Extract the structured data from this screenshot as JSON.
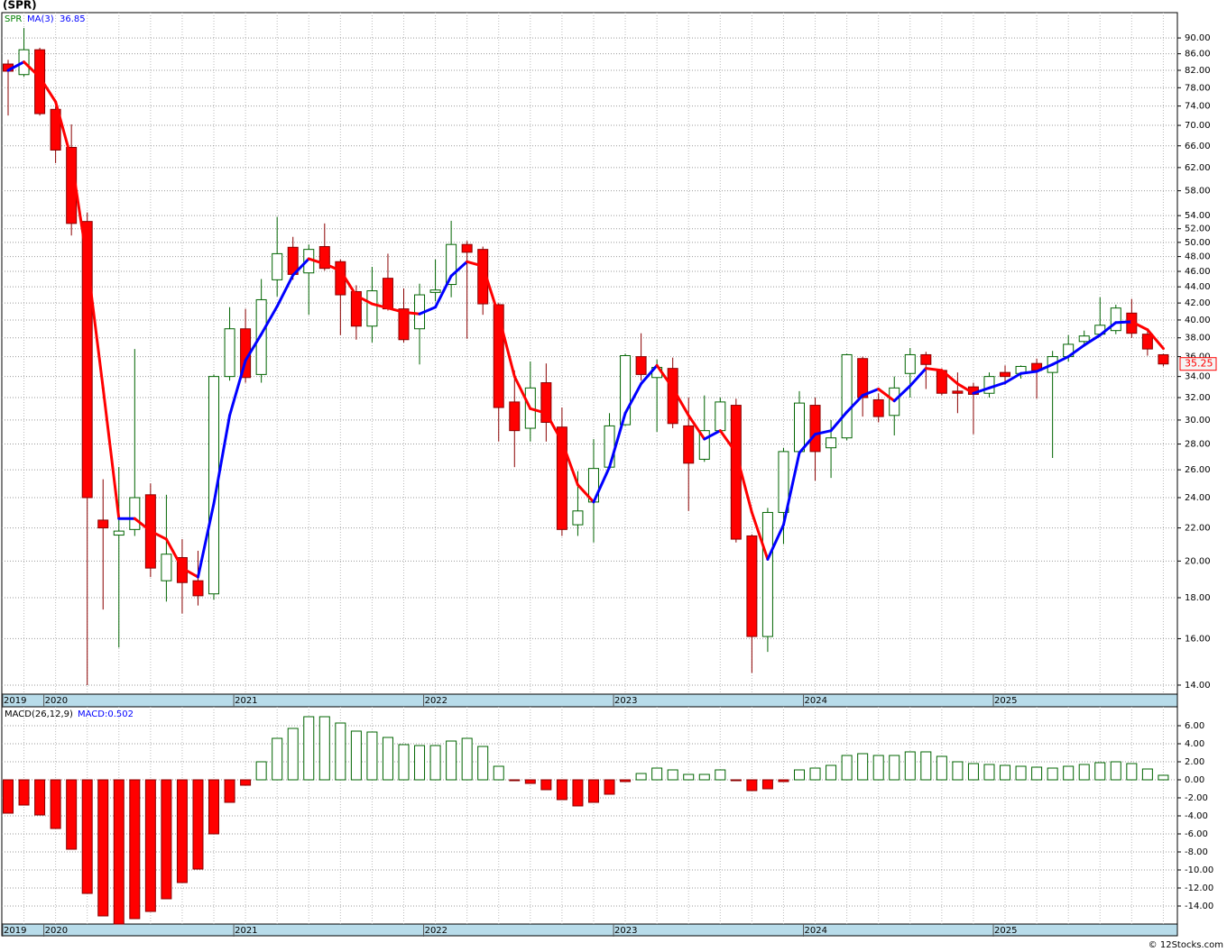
{
  "title": "(SPR)",
  "footer": "© 12Stocks.com",
  "chart_data": [
    {
      "type": "candlestick",
      "name": "SPR",
      "ma_label": "MA(3)",
      "ma_value_label": "36.85",
      "last_label": "35.25",
      "open": [
        83.5,
        81,
        87,
        73.3,
        65.7,
        53.1,
        22.5,
        21.55,
        21.9,
        24.2,
        18.9,
        20.2,
        18.9,
        18.2,
        34,
        39,
        34.2,
        44.9,
        49.3,
        45.8,
        49.4,
        47.3,
        43.4,
        39.3,
        45.1,
        41.3,
        39,
        43.3,
        44.3,
        49.7,
        49.0,
        41.8,
        31.6,
        29.3,
        33.4,
        29.4,
        22.2,
        23.7,
        26.2,
        29.6,
        36.0,
        33.9,
        34.8,
        29.5,
        26.8,
        29.1,
        31.3,
        21.5,
        16.1,
        23.0,
        27.4,
        31.3,
        27.7,
        28.5,
        35.8,
        31.8,
        30.4,
        34.3,
        36.2,
        34.6,
        32.6,
        33.0,
        32.4,
        34.4,
        34.3,
        35.3,
        34.4,
        36.0,
        37.6,
        38.4,
        38.8,
        40.8,
        38.4,
        36.2
      ],
      "high": [
        84.5,
        92.6,
        87.5,
        74,
        70.2,
        54.5,
        25.3,
        26.2,
        36.8,
        25,
        24.2,
        21.3,
        20.6,
        34.2,
        41.5,
        41.3,
        45,
        53.8,
        50.8,
        49.7,
        52.8,
        47.6,
        44.2,
        46.6,
        48.4,
        43.8,
        44.4,
        47.6,
        53.2,
        50.2,
        49.4,
        42,
        34.6,
        35.5,
        35.3,
        31.1,
        25.9,
        28.4,
        30.6,
        36.3,
        38.5,
        35.7,
        35.9,
        32,
        32.2,
        32,
        31.9,
        21.6,
        23.3,
        27.7,
        32.6,
        32,
        30,
        36.3,
        36,
        32.4,
        34,
        36.9,
        36.5,
        34.8,
        34.4,
        33.4,
        34.4,
        35.1,
        35.1,
        35.8,
        36.6,
        38.3,
        38.8,
        42.7,
        41.8,
        42.5,
        38.9,
        36.3
      ],
      "low": [
        72,
        80.5,
        72,
        62.8,
        51,
        14,
        17.4,
        15.6,
        21.5,
        19.1,
        17.8,
        17.2,
        17.6,
        17.9,
        33.6,
        33.4,
        33.4,
        42.8,
        44.9,
        40.6,
        46.1,
        38.3,
        37.8,
        37.5,
        41.1,
        37.5,
        35.2,
        42.2,
        42.7,
        37.9,
        40.6,
        28.2,
        26.2,
        28.2,
        28.2,
        21.5,
        21.5,
        21.1,
        26.1,
        29.5,
        33.6,
        29,
        29.3,
        23.1,
        26.6,
        29.0,
        21.1,
        14.5,
        15.4,
        21.0,
        27.0,
        25.2,
        25.4,
        28.3,
        30.3,
        29.8,
        28.7,
        32.0,
        32.8,
        32.2,
        30.6,
        28.8,
        32.0,
        33.2,
        33.8,
        31.9,
        26.9,
        35.5,
        37.3,
        38.1,
        38.4,
        38.0,
        36.1,
        35.0
      ],
      "close": [
        81.8,
        87,
        72.4,
        65.2,
        52.8,
        24,
        22.0,
        21.8,
        24.0,
        19.6,
        20.4,
        18.8,
        18.1,
        34,
        39,
        33.9,
        42.4,
        48.4,
        45.6,
        49.0,
        46.4,
        43,
        39.3,
        43.5,
        41.3,
        37.8,
        43,
        43.6,
        49.7,
        48.6,
        41.9,
        31.1,
        29.1,
        32.9,
        29.8,
        21.9,
        23.1,
        26.1,
        29.5,
        36.1,
        34.2,
        34.9,
        29.7,
        26.5,
        29.1,
        31.6,
        21.3,
        16.1,
        23.0,
        27.4,
        31.5,
        27.4,
        28.5,
        36.2,
        32,
        30.3,
        32.9,
        36.2,
        35.2,
        32.4,
        32.4,
        32.3,
        34.0,
        34.0,
        35.0,
        34.6,
        36.0,
        37.3,
        38.2,
        39.4,
        41.4,
        38.5,
        36.8,
        35.25
      ],
      "ma": [
        82.0,
        84.0,
        80.4,
        74.9,
        63.5,
        47.3,
        32.9,
        22.6,
        22.6,
        21.8,
        21.3,
        19.6,
        19.1,
        23.6,
        30.4,
        35.6,
        38.4,
        41.6,
        45.5,
        47.7,
        47.0,
        46.1,
        42.9,
        41.9,
        41.4,
        40.9,
        40.7,
        41.5,
        45.4,
        47.3,
        46.7,
        40.5,
        34.0,
        31.0,
        30.6,
        28.2,
        24.9,
        23.7,
        26.2,
        30.6,
        33.3,
        35.1,
        32.9,
        30.4,
        28.4,
        29.1,
        27.3,
        23.0,
        20.1,
        22.2,
        27.3,
        28.8,
        29.1,
        30.7,
        32.2,
        32.8,
        31.7,
        33.1,
        34.8,
        34.6,
        33.3,
        32.4,
        32.9,
        33.4,
        34.3,
        34.5,
        35.2,
        36.0,
        37.2,
        38.3,
        39.7,
        39.8,
        38.9,
        36.85
      ],
      "up_color": "#006400",
      "down_color": "#ff0000",
      "ma_up_color": "#0000ff",
      "ma_down_color": "#ff0000",
      "log_scale": true,
      "grid": true,
      "ylim": [
        13.64,
        96.8
      ],
      "yticks": [
        {
          "value": 14,
          "label": "14.00"
        },
        {
          "value": 16,
          "label": "16.00"
        },
        {
          "value": 18,
          "label": "18.00"
        },
        {
          "value": 20,
          "label": "20.00"
        },
        {
          "value": 22,
          "label": "22.00"
        },
        {
          "value": 24,
          "label": "24.00"
        },
        {
          "value": 26,
          "label": "26.00"
        },
        {
          "value": 28,
          "label": "28.00"
        },
        {
          "value": 30,
          "label": "30.00"
        },
        {
          "value": 32,
          "label": "32.00"
        },
        {
          "value": 34,
          "label": "34.00"
        },
        {
          "value": 36,
          "label": "36.00"
        },
        {
          "value": 38,
          "label": "38.00"
        },
        {
          "value": 40,
          "label": "40.00"
        },
        {
          "value": 42,
          "label": "42.00"
        },
        {
          "value": 44,
          "label": "44.00"
        },
        {
          "value": 46,
          "label": "46.00"
        },
        {
          "value": 48,
          "label": "48.00"
        },
        {
          "value": 50,
          "label": "50.00"
        },
        {
          "value": 52,
          "label": "52.00"
        },
        {
          "value": 54,
          "label": "54.00"
        },
        {
          "value": 58,
          "label": "58.00"
        },
        {
          "value": 62,
          "label": "62.00"
        },
        {
          "value": 66,
          "label": "66.00"
        },
        {
          "value": 70,
          "label": "70.00"
        },
        {
          "value": 74,
          "label": "74.00"
        },
        {
          "value": 78,
          "label": "78.00"
        },
        {
          "value": 82,
          "label": "82.00"
        },
        {
          "value": 86,
          "label": "86.00"
        },
        {
          "value": 90,
          "label": "90.00"
        }
      ],
      "xticks": [
        {
          "value": 0,
          "label": "2019"
        },
        {
          "value": 3,
          "label": "2020"
        },
        {
          "value": 15,
          "label": "2021"
        },
        {
          "value": 27,
          "label": "2022"
        },
        {
          "value": 39,
          "label": "2023"
        },
        {
          "value": 51,
          "label": "2024"
        },
        {
          "value": 63,
          "label": "2025"
        }
      ]
    },
    {
      "type": "bar",
      "name": "MACD(26,12,9)",
      "value_label": "MACD:0.502",
      "values": [
        -3.7,
        -2.8,
        -3.9,
        -5.4,
        -7.7,
        -12.6,
        -15.1,
        -16.0,
        -15.4,
        -14.6,
        -13.2,
        -11.4,
        -9.9,
        -6.0,
        -2.5,
        -0.6,
        2.0,
        4.6,
        5.7,
        7.0,
        7.0,
        6.3,
        5.4,
        5.3,
        4.7,
        3.9,
        3.8,
        3.8,
        4.3,
        4.6,
        3.7,
        1.5,
        -0.1,
        -0.4,
        -1.1,
        -2.2,
        -2.9,
        -2.5,
        -1.6,
        -0.2,
        0.7,
        1.3,
        1.1,
        0.6,
        0.6,
        1.1,
        -0.1,
        -1.2,
        -1.0,
        -0.2,
        1.1,
        1.3,
        1.6,
        2.7,
        2.9,
        2.7,
        2.7,
        3.1,
        3.1,
        2.6,
        2.0,
        1.8,
        1.7,
        1.6,
        1.5,
        1.4,
        1.3,
        1.5,
        1.7,
        1.9,
        2.0,
        1.8,
        1.2,
        0.502
      ],
      "up_color": "#006400",
      "down_color": "#ff0000",
      "grid": true,
      "ylim": [
        -16.0,
        8.1
      ],
      "yticks": [
        {
          "value": -14,
          "label": "-14.00"
        },
        {
          "value": -12,
          "label": "-12.00"
        },
        {
          "value": -10,
          "label": "-10.00"
        },
        {
          "value": -8,
          "label": "-8.00"
        },
        {
          "value": -6,
          "label": "-6.00"
        },
        {
          "value": -4,
          "label": "-4.00"
        },
        {
          "value": -2,
          "label": "-2.00"
        },
        {
          "value": 0,
          "label": "0.00"
        },
        {
          "value": 2,
          "label": "2.00"
        },
        {
          "value": 4,
          "label": "4.00"
        },
        {
          "value": 6,
          "label": "6.00"
        }
      ],
      "xticks": [
        {
          "value": 0,
          "label": "2019"
        },
        {
          "value": 3,
          "label": "2020"
        },
        {
          "value": 15,
          "label": "2021"
        },
        {
          "value": 27,
          "label": "2022"
        },
        {
          "value": 39,
          "label": "2023"
        },
        {
          "value": 51,
          "label": "2024"
        },
        {
          "value": 63,
          "label": "2025"
        }
      ]
    }
  ]
}
